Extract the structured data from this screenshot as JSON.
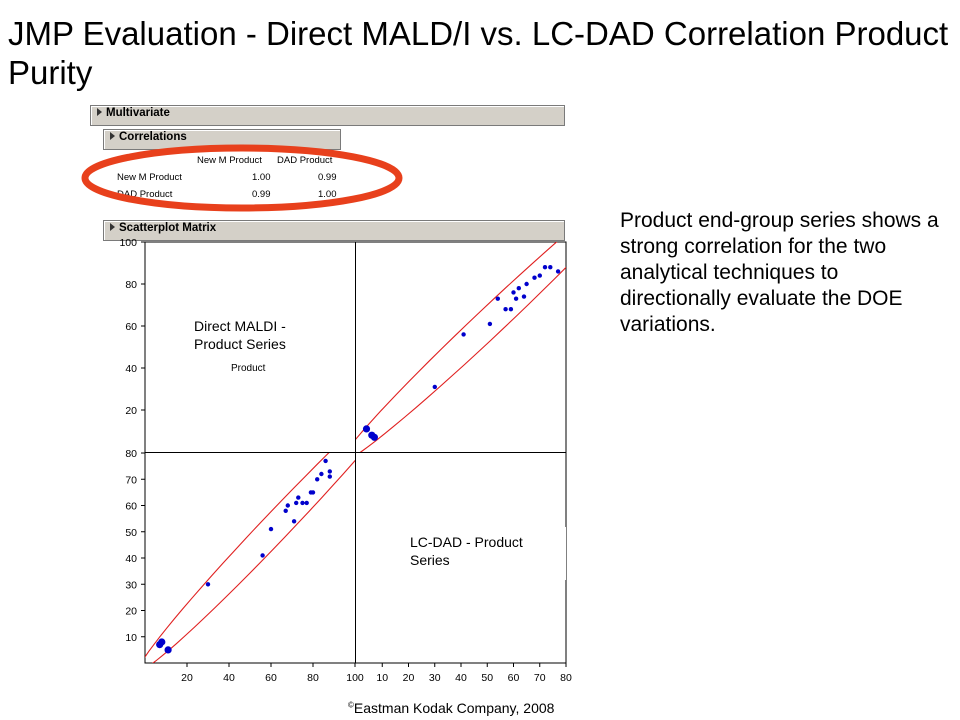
{
  "slide": {
    "title": "JMP Evaluation - Direct MALD/I vs. LC-DAD Correlation Product Purity",
    "description": "Product end-group series shows a strong correlation for the two analytical techniques to directionally evaluate the DOE variations.",
    "footer_symbol": "©",
    "footer_text": "Eastman Kodak Company, 2008",
    "highlight_color": "#e8401c"
  },
  "jmp": {
    "multivariate_label": "Multivariate",
    "correlations_label": "Correlations",
    "scatterplot_label": "Scatterplot Matrix",
    "correlation_table": {
      "columns": [
        "New M Product",
        "DAD Product"
      ],
      "rows": [
        {
          "name": "New M Product",
          "values": [
            "1.00",
            "0.99"
          ]
        },
        {
          "name": "DAD Product",
          "values": [
            "0.99",
            "1.00"
          ]
        }
      ]
    }
  },
  "chart_data": [
    {
      "type": "scatter",
      "title": "",
      "annotation": "Direct MALDI - Product Series",
      "hidden_label_fragment": "Product",
      "xlabel": "",
      "ylabel": "",
      "xlim": [
        0,
        80
      ],
      "ylim": [
        0,
        100
      ],
      "x_ticks": [
        "10",
        "20",
        "30",
        "40",
        "50",
        "60",
        "70",
        "80"
      ],
      "y_ticks": [
        "20",
        "40",
        "60",
        "80",
        "100"
      ],
      "density_ellipse": true,
      "series": [
        {
          "color": "#0000cc",
          "x": [
            4,
            6,
            7,
            30,
            41,
            51,
            54,
            57,
            59,
            60,
            61,
            62,
            64,
            65,
            68,
            70,
            72,
            74,
            77
          ],
          "y": [
            11,
            8,
            7,
            31,
            56,
            61,
            73,
            68,
            68,
            76,
            73,
            78,
            74,
            80,
            83,
            84,
            88,
            88,
            86
          ]
        }
      ]
    },
    {
      "type": "scatter",
      "title": "",
      "annotation": "LC-DAD - Product Series",
      "xlabel": "",
      "ylabel": "",
      "xlim": [
        0,
        100
      ],
      "ylim": [
        0,
        80
      ],
      "x_ticks": [
        "20",
        "40",
        "60",
        "80",
        "100"
      ],
      "y_ticks": [
        "10",
        "20",
        "30",
        "40",
        "50",
        "60",
        "70",
        "80"
      ],
      "density_ellipse": true,
      "series": [
        {
          "color": "#0000cc",
          "x": [
            7,
            8,
            11,
            30,
            56,
            60,
            67,
            68,
            71,
            72,
            73,
            75,
            77,
            79,
            80,
            82,
            84,
            86,
            88,
            88
          ],
          "y": [
            7,
            8,
            5,
            30,
            41,
            51,
            58,
            60,
            54,
            61,
            63,
            61,
            61,
            65,
            65,
            70,
            72,
            77,
            71,
            73
          ]
        }
      ]
    }
  ]
}
